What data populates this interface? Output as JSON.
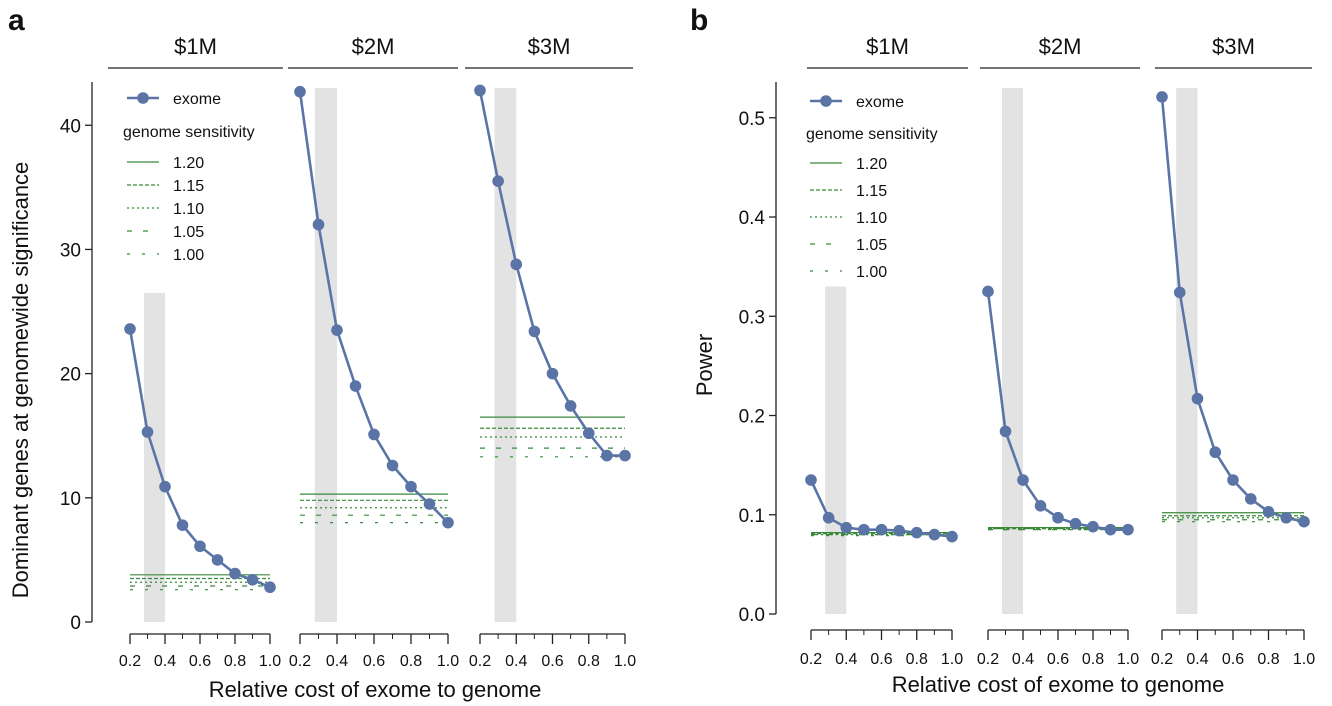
{
  "chart_data": [
    {
      "type": "line",
      "panel_label": "a",
      "ylabel": "Dominant genes at genomewide significance",
      "xlabel": "Relative cost of exome to genome",
      "ylim": [
        0,
        43
      ],
      "yticks": [
        0,
        10,
        20,
        30,
        40
      ],
      "xlim": [
        0.2,
        1.0
      ],
      "xticks": [
        0.2,
        0.4,
        0.6,
        0.8,
        1.0
      ],
      "xtick_labels": [
        "0.2",
        "0.4",
        "0.6",
        "0.8",
        "1.0"
      ],
      "grid": false,
      "legend_placement": "top-left of first facet",
      "legend_title": "genome sensitivity",
      "exome_label": "exome",
      "facets": [
        {
          "title": "$1M",
          "highlight": {
            "x_from": 0.28,
            "x_to": 0.4,
            "y_top": 26.5
          },
          "exome": {
            "x": [
              0.2,
              0.3,
              0.4,
              0.5,
              0.6,
              0.7,
              0.8,
              0.9,
              1.0
            ],
            "y": [
              23.6,
              15.3,
              10.9,
              7.8,
              6.1,
              5.0,
              3.9,
              3.4,
              2.8
            ]
          },
          "genome_lines": [
            {
              "name": "1.20",
              "y": 3.8
            },
            {
              "name": "1.15",
              "y": 3.5
            },
            {
              "name": "1.10",
              "y": 3.2
            },
            {
              "name": "1.05",
              "y": 2.9
            },
            {
              "name": "1.00",
              "y": 2.6
            }
          ]
        },
        {
          "title": "$2M",
          "highlight": {
            "x_from": 0.28,
            "x_to": 0.4,
            "y_top": 43
          },
          "exome": {
            "x": [
              0.2,
              0.3,
              0.4,
              0.5,
              0.6,
              0.7,
              0.8,
              0.9,
              1.0
            ],
            "y": [
              42.7,
              32.0,
              23.5,
              19.0,
              15.1,
              12.6,
              10.9,
              9.5,
              8.0
            ]
          },
          "genome_lines": [
            {
              "name": "1.20",
              "y": 10.3
            },
            {
              "name": "1.15",
              "y": 9.8
            },
            {
              "name": "1.10",
              "y": 9.2
            },
            {
              "name": "1.05",
              "y": 8.6
            },
            {
              "name": "1.00",
              "y": 8.0
            }
          ]
        },
        {
          "title": "$3M",
          "highlight": {
            "x_from": 0.28,
            "x_to": 0.4,
            "y_top": 43
          },
          "exome": {
            "x": [
              0.2,
              0.3,
              0.4,
              0.5,
              0.6,
              0.7,
              0.8,
              0.9,
              1.0
            ],
            "y": [
              42.8,
              35.5,
              28.8,
              23.4,
              20.0,
              17.4,
              15.2,
              13.4,
              13.4
            ]
          },
          "genome_lines": [
            {
              "name": "1.20",
              "y": 16.5
            },
            {
              "name": "1.15",
              "y": 15.6
            },
            {
              "name": "1.10",
              "y": 14.9
            },
            {
              "name": "1.05",
              "y": 14.0
            },
            {
              "name": "1.00",
              "y": 13.3
            }
          ]
        }
      ]
    },
    {
      "type": "line",
      "panel_label": "b",
      "ylabel": "Power",
      "xlabel": "Relative cost of exome to genome",
      "ylim": [
        0,
        0.53
      ],
      "yticks": [
        0.0,
        0.1,
        0.2,
        0.3,
        0.4,
        0.5
      ],
      "ytick_labels": [
        "0.0",
        "0.1",
        "0.2",
        "0.3",
        "0.4",
        "0.5"
      ],
      "xlim": [
        0.2,
        1.0
      ],
      "xticks": [
        0.2,
        0.4,
        0.6,
        0.8,
        1.0
      ],
      "xtick_labels": [
        "0.2",
        "0.4",
        "0.6",
        "0.8",
        "1.0"
      ],
      "grid": false,
      "legend_placement": "top-left of first facet",
      "legend_title": "genome sensitivity",
      "exome_label": "exome",
      "facets": [
        {
          "title": "$1M",
          "highlight": {
            "x_from": 0.28,
            "x_to": 0.4,
            "y_top": 0.33
          },
          "exome": {
            "x": [
              0.2,
              0.3,
              0.4,
              0.5,
              0.6,
              0.7,
              0.8,
              0.9,
              1.0
            ],
            "y": [
              0.135,
              0.097,
              0.087,
              0.085,
              0.085,
              0.084,
              0.082,
              0.08,
              0.078
            ]
          },
          "genome_lines": [
            {
              "name": "1.20",
              "y": 0.082
            },
            {
              "name": "1.15",
              "y": 0.081
            },
            {
              "name": "1.10",
              "y": 0.08
            },
            {
              "name": "1.05",
              "y": 0.08
            },
            {
              "name": "1.00",
              "y": 0.079
            }
          ]
        },
        {
          "title": "$2M",
          "highlight": {
            "x_from": 0.28,
            "x_to": 0.4,
            "y_top": 0.53
          },
          "exome": {
            "x": [
              0.2,
              0.3,
              0.4,
              0.5,
              0.6,
              0.7,
              0.8,
              0.9,
              1.0
            ],
            "y": [
              0.325,
              0.184,
              0.135,
              0.109,
              0.097,
              0.091,
              0.088,
              0.085,
              0.085
            ]
          },
          "genome_lines": [
            {
              "name": "1.20",
              "y": 0.087
            },
            {
              "name": "1.15",
              "y": 0.086
            },
            {
              "name": "1.10",
              "y": 0.086
            },
            {
              "name": "1.05",
              "y": 0.085
            },
            {
              "name": "1.00",
              "y": 0.085
            }
          ]
        },
        {
          "title": "$3M",
          "highlight": {
            "x_from": 0.28,
            "x_to": 0.4,
            "y_top": 0.53
          },
          "exome": {
            "x": [
              0.2,
              0.3,
              0.4,
              0.5,
              0.6,
              0.7,
              0.8,
              0.9,
              1.0
            ],
            "y": [
              0.521,
              0.324,
              0.217,
              0.163,
              0.135,
              0.116,
              0.103,
              0.097,
              0.093
            ]
          },
          "genome_lines": [
            {
              "name": "1.20",
              "y": 0.102
            },
            {
              "name": "1.15",
              "y": 0.099
            },
            {
              "name": "1.10",
              "y": 0.097
            },
            {
              "name": "1.05",
              "y": 0.095
            },
            {
              "name": "1.00",
              "y": 0.093
            }
          ]
        }
      ]
    }
  ],
  "colors": {
    "exome": "#5b74a6",
    "genome": "#3a8a3a",
    "highlight": "#e3e3e3",
    "axis": "#222222"
  }
}
